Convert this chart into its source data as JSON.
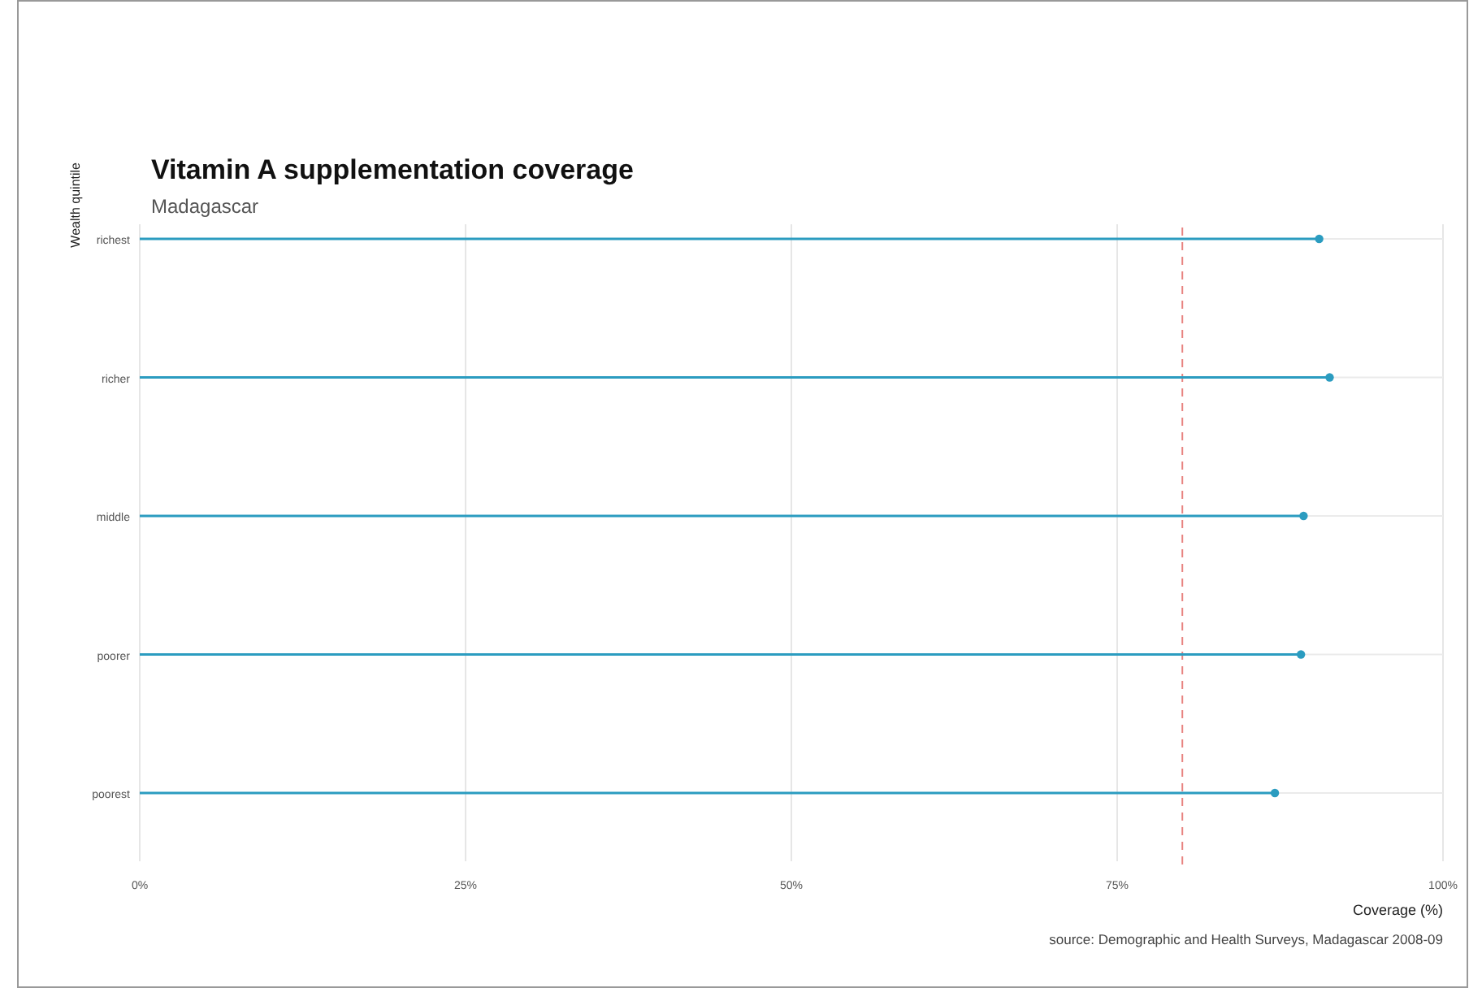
{
  "chart_data": {
    "type": "lollipop",
    "orientation": "horizontal",
    "title": "Vitamin A supplementation coverage",
    "subtitle": "Madagascar",
    "xlabel": "Coverage (%)",
    "ylabel": "Wealth quintile",
    "categories": [
      "richest",
      "richer",
      "middle",
      "poorer",
      "poorest"
    ],
    "values": [
      90.5,
      91.3,
      89.3,
      89.1,
      87.1
    ],
    "color": "#2b9cc0",
    "xlim": [
      0,
      100
    ],
    "xticks": [
      {
        "value": 0,
        "label": "0%"
      },
      {
        "value": 25,
        "label": "25%"
      },
      {
        "value": 50,
        "label": "50%"
      },
      {
        "value": 75,
        "label": "75%"
      },
      {
        "value": 100,
        "label": "100%"
      }
    ],
    "grid": true,
    "marker": "circle",
    "ref_lines": [
      {
        "axis": "x",
        "value": 80,
        "color": "#e8827f",
        "line_style": "dashed"
      }
    ],
    "annotations": [
      "source: Demographic and Health Surveys, Madagascar 2008-09"
    ]
  }
}
